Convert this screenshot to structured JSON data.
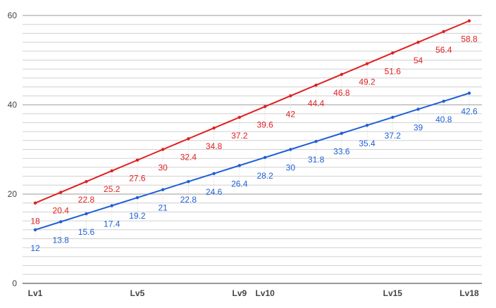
{
  "chart_data": {
    "type": "line",
    "x": [
      "Lv1",
      "Lv2",
      "Lv3",
      "Lv4",
      "Lv5",
      "Lv6",
      "Lv7",
      "Lv8",
      "Lv9",
      "Lv10",
      "Lv11",
      "Lv12",
      "Lv13",
      "Lv14",
      "Lv15",
      "Lv16",
      "Lv17",
      "Lv18"
    ],
    "x_tick_labels": [
      "Lv1",
      "",
      "",
      "",
      "Lv5",
      "",
      "",
      "",
      "Lv9",
      "Lv10",
      "",
      "",
      "",
      "",
      "Lv15",
      "",
      "",
      "Lv18"
    ],
    "series": [
      {
        "color": "#e02020",
        "values": [
          18,
          20.4,
          22.8,
          25.2,
          27.6,
          30,
          32.4,
          34.8,
          37.2,
          39.6,
          42,
          44.4,
          46.8,
          49.2,
          51.6,
          54,
          56.4,
          58.8
        ]
      },
      {
        "color": "#1f5fd6",
        "values": [
          12,
          13.8,
          15.6,
          17.4,
          19.2,
          21,
          22.8,
          24.6,
          26.4,
          28.2,
          30,
          31.8,
          33.6,
          35.4,
          37.2,
          39,
          40.8,
          42.6
        ]
      }
    ],
    "ylim": [
      0,
      60
    ],
    "y_ticks": [
      "0",
      "20",
      "40",
      "60"
    ],
    "grid": true,
    "data_labels": true
  }
}
